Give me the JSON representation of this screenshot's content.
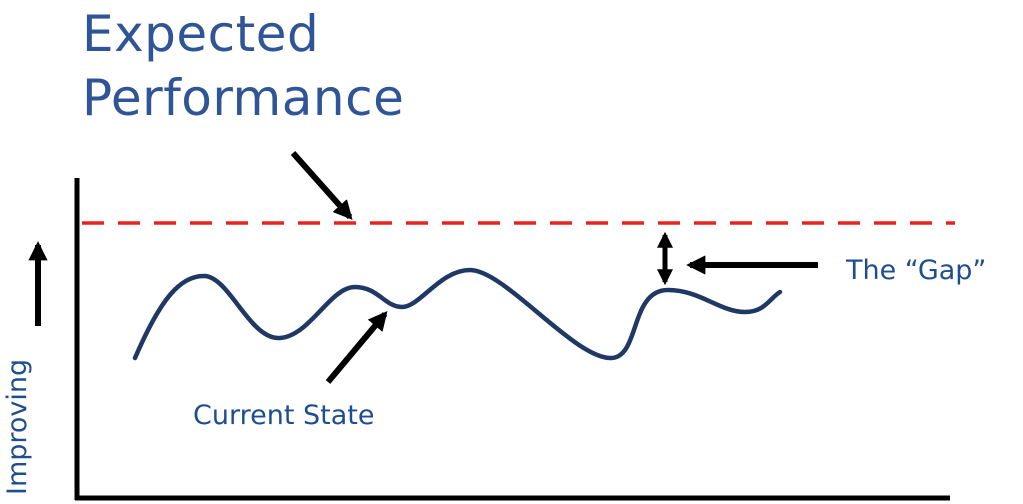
{
  "title": {
    "line1": "Expected",
    "line2": "Performance"
  },
  "labels": {
    "gap": "The “Gap”",
    "current_state": "Current State",
    "y_axis": "Improving"
  },
  "colors": {
    "title_text": "#2F5597",
    "label_text": "#1F4E8F",
    "expected_line": "#E8231F",
    "current_curve": "#1F3864",
    "axes_and_arrows": "#000000"
  }
}
